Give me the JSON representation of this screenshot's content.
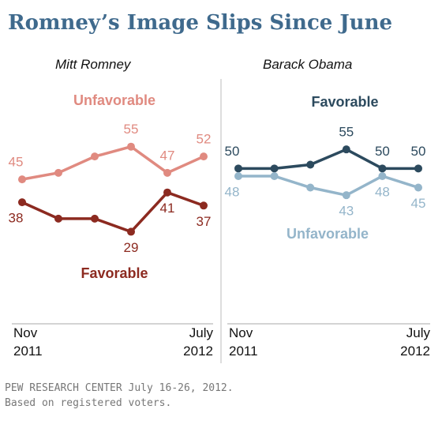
{
  "title": "Romney’s Image Slips Since June",
  "chart_data": [
    {
      "type": "line",
      "title": "Mitt Romney",
      "categories": [
        "Nov 2011",
        null,
        null,
        null,
        null,
        "July 2012"
      ],
      "ylim": [
        25,
        60
      ],
      "series": [
        {
          "name": "Unfavorable",
          "color": "#e08a80",
          "values": [
            45,
            47,
            52,
            55,
            47,
            52
          ],
          "value_labels": [
            "45",
            null,
            null,
            "55",
            "47",
            "52"
          ]
        },
        {
          "name": "Favorable",
          "color": "#8c2a20",
          "values": [
            38,
            33,
            33,
            29,
            41,
            37
          ],
          "value_labels": [
            "38",
            null,
            null,
            "29",
            "41",
            "37"
          ]
        }
      ]
    },
    {
      "type": "line",
      "title": "Barack Obama",
      "categories": [
        "Nov 2011",
        null,
        null,
        null,
        null,
        "July 2012"
      ],
      "ylim": [
        30,
        60
      ],
      "series": [
        {
          "name": "Favorable",
          "color": "#2c4a5e",
          "values": [
            50,
            50,
            51,
            55,
            50,
            50
          ],
          "value_labels": [
            "50",
            null,
            null,
            "55",
            "50",
            "50"
          ]
        },
        {
          "name": "Unfavorable",
          "color": "#94b5ca",
          "values": [
            48,
            48,
            45,
            43,
            48,
            45
          ],
          "value_labels": [
            "48",
            null,
            null,
            "43",
            "48",
            "45"
          ]
        }
      ]
    }
  ],
  "source": "PEW RESEARCH CENTER July 16-26, 2012.",
  "note": "Based on registered voters."
}
